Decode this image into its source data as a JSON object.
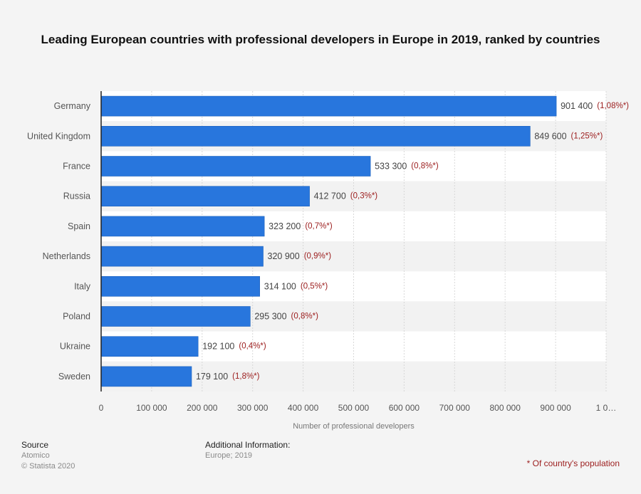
{
  "title": "Leading European countries with professional developers in Europe in 2019, ranked by countries",
  "chart_data": {
    "type": "bar",
    "orientation": "horizontal",
    "title": "Leading European countries with professional developers in Europe in 2019, ranked by countries",
    "categories": [
      "Germany",
      "United Kingdom",
      "France",
      "Russia",
      "Spain",
      "Netherlands",
      "Italy",
      "Poland",
      "Ukraine",
      "Sweden"
    ],
    "values": [
      901400,
      849600,
      533300,
      412700,
      323200,
      320900,
      314100,
      295300,
      192100,
      179100
    ],
    "value_labels": [
      "901 400",
      "849 600",
      "533 300",
      "412 700",
      "323 200",
      "320 900",
      "314 100",
      "295 300",
      "192 100",
      "179 100"
    ],
    "annotations": [
      "(1,08%*)",
      "(1,25%*)",
      "(0,8%*)",
      "(0,3%*)",
      "(0,7%*)",
      "(0,9%*)",
      "(0,5%*)",
      "(0,8%*)",
      "(0,4%*)",
      "(1,8%*)"
    ],
    "xlabel": "Number of professional developers",
    "ylabel": "",
    "xlim": [
      0,
      1000000
    ],
    "x_ticks": [
      0,
      100000,
      200000,
      300000,
      400000,
      500000,
      600000,
      700000,
      800000,
      900000,
      1000000
    ],
    "x_tick_labels": [
      "0",
      "100 000",
      "200 000",
      "300 000",
      "400 000",
      "500 000",
      "600 000",
      "700 000",
      "800 000",
      "900 000",
      "1 0…"
    ],
    "grid": true,
    "bar_color": "#2876dd",
    "annotation_color": "#9b1c1c"
  },
  "footer": {
    "source_heading": "Source",
    "source_lines": [
      "Atomico",
      "© Statista 2020"
    ],
    "additional_heading": "Additional Information:",
    "additional_lines": [
      "Europe; 2019"
    ],
    "footnote": "* Of country's population"
  }
}
